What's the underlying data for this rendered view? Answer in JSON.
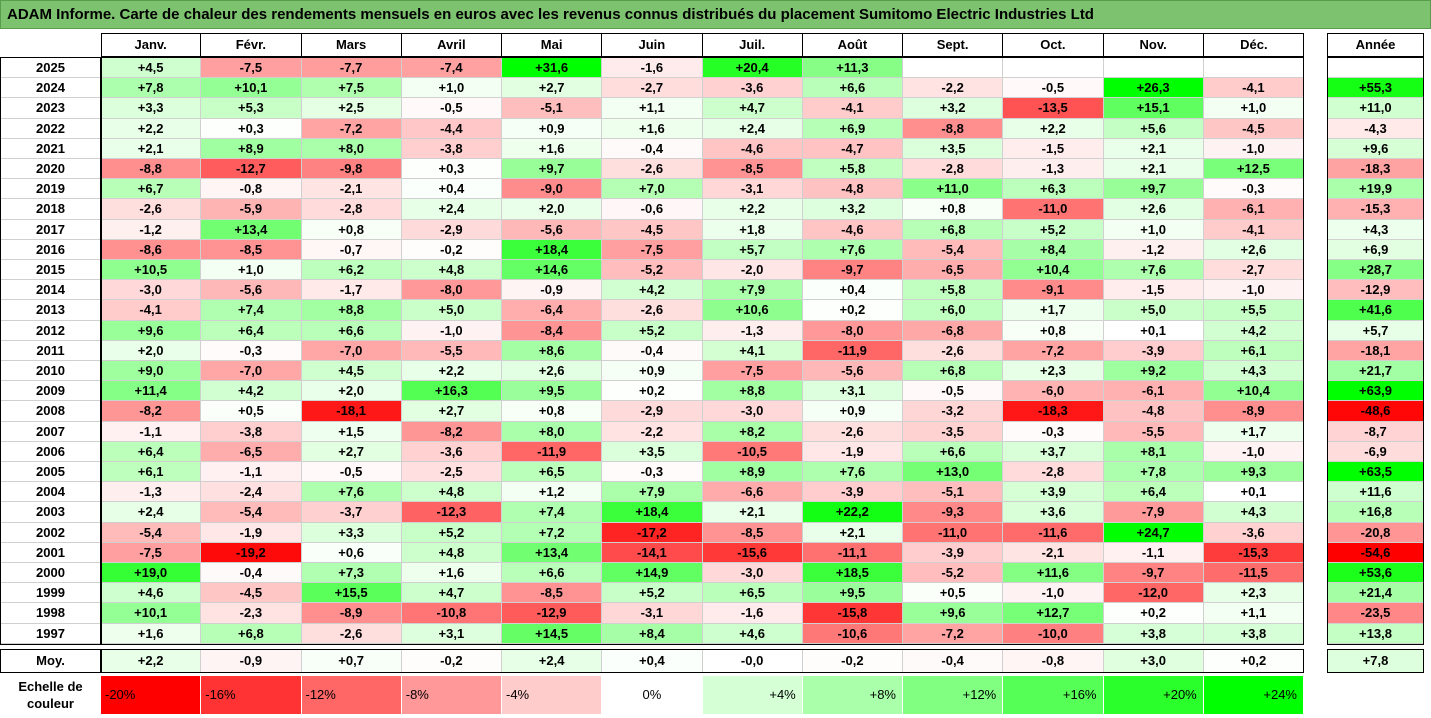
{
  "title": "ADAM Informe. Carte de chaleur des rendements mensuels en euros avec les revenus connus distribués du placement Sumitomo Electric Industries Ltd",
  "chart_data": {
    "type": "heatmap",
    "title": "ADAM Informe. Carte de chaleur des rendements mensuels en euros avec les revenus connus distribués du placement Sumitomo Electric Industries Ltd",
    "months": [
      "Janv.",
      "Févr.",
      "Mars",
      "Avril",
      "Mai",
      "Juin",
      "Juil.",
      "Août",
      "Sept.",
      "Oct.",
      "Nov.",
      "Déc."
    ],
    "year_header": "Année",
    "rows": [
      {
        "year": "2025",
        "values": [
          "+4,5",
          "-7,5",
          "-7,7",
          "-7,4",
          "+31,6",
          "-1,6",
          "+20,4",
          "+11,3",
          "",
          "",
          "",
          ""
        ],
        "annual": ""
      },
      {
        "year": "2024",
        "values": [
          "+7,8",
          "+10,1",
          "+7,5",
          "+1,0",
          "+2,7",
          "-2,7",
          "-3,6",
          "+6,6",
          "-2,2",
          "-0,5",
          "+26,3",
          "-4,1"
        ],
        "annual": "+55,3"
      },
      {
        "year": "2023",
        "values": [
          "+3,3",
          "+5,3",
          "+2,5",
          "-0,5",
          "-5,1",
          "+1,1",
          "+4,7",
          "-4,1",
          "+3,2",
          "-13,5",
          "+15,1",
          "+1,0"
        ],
        "annual": "+11,0"
      },
      {
        "year": "2022",
        "values": [
          "+2,2",
          "+0,3",
          "-7,2",
          "-4,4",
          "+0,9",
          "+1,6",
          "+2,4",
          "+6,9",
          "-8,8",
          "+2,2",
          "+5,6",
          "-4,5"
        ],
        "annual": "-4,3"
      },
      {
        "year": "2021",
        "values": [
          "+2,1",
          "+8,9",
          "+8,0",
          "-3,8",
          "+1,6",
          "-0,4",
          "-4,6",
          "-4,7",
          "+3,5",
          "-1,5",
          "+2,1",
          "-1,0"
        ],
        "annual": "+9,6"
      },
      {
        "year": "2020",
        "values": [
          "-8,8",
          "-12,7",
          "-9,8",
          "+0,3",
          "+9,7",
          "-2,6",
          "-8,5",
          "+5,8",
          "-2,8",
          "-1,3",
          "+2,1",
          "+12,5"
        ],
        "annual": "-18,3"
      },
      {
        "year": "2019",
        "values": [
          "+6,7",
          "-0,8",
          "-2,1",
          "+0,4",
          "-9,0",
          "+7,0",
          "-3,1",
          "-4,8",
          "+11,0",
          "+6,3",
          "+9,7",
          "-0,3"
        ],
        "annual": "+19,9"
      },
      {
        "year": "2018",
        "values": [
          "-2,6",
          "-5,9",
          "-2,8",
          "+2,4",
          "+2,0",
          "-0,6",
          "+2,2",
          "+3,2",
          "+0,8",
          "-11,0",
          "+2,6",
          "-6,1"
        ],
        "annual": "-15,3"
      },
      {
        "year": "2017",
        "values": [
          "-1,2",
          "+13,4",
          "+0,8",
          "-2,9",
          "-5,6",
          "-4,5",
          "+1,8",
          "-4,6",
          "+6,8",
          "+5,2",
          "+1,0",
          "-4,1"
        ],
        "annual": "+4,3"
      },
      {
        "year": "2016",
        "values": [
          "-8,6",
          "-8,5",
          "-0,7",
          "-0,2",
          "+18,4",
          "-7,5",
          "+5,7",
          "+7,6",
          "-5,4",
          "+8,4",
          "-1,2",
          "+2,6"
        ],
        "annual": "+6,9"
      },
      {
        "year": "2015",
        "values": [
          "+10,5",
          "+1,0",
          "+6,2",
          "+4,8",
          "+14,6",
          "-5,2",
          "-2,0",
          "-9,7",
          "-6,5",
          "+10,4",
          "+7,6",
          "-2,7"
        ],
        "annual": "+28,7"
      },
      {
        "year": "2014",
        "values": [
          "-3,0",
          "-5,6",
          "-1,7",
          "-8,0",
          "-0,9",
          "+4,2",
          "+7,9",
          "+0,4",
          "+5,8",
          "-9,1",
          "-1,5",
          "-1,0"
        ],
        "annual": "-12,9"
      },
      {
        "year": "2013",
        "values": [
          "-4,1",
          "+7,4",
          "+8,8",
          "+5,0",
          "-6,4",
          "-2,6",
          "+10,6",
          "+0,2",
          "+6,0",
          "+1,7",
          "+5,0",
          "+5,5"
        ],
        "annual": "+41,6"
      },
      {
        "year": "2012",
        "values": [
          "+9,6",
          "+6,4",
          "+6,6",
          "-1,0",
          "-8,4",
          "+5,2",
          "-1,3",
          "-8,0",
          "-6,8",
          "+0,8",
          "+0,1",
          "+4,2"
        ],
        "annual": "+5,7"
      },
      {
        "year": "2011",
        "values": [
          "+2,0",
          "-0,3",
          "-7,0",
          "-5,5",
          "+8,6",
          "-0,4",
          "+4,1",
          "-11,9",
          "-2,6",
          "-7,2",
          "-3,9",
          "+6,1"
        ],
        "annual": "-18,1"
      },
      {
        "year": "2010",
        "values": [
          "+9,0",
          "-7,0",
          "+4,5",
          "+2,2",
          "+2,6",
          "+0,9",
          "-7,5",
          "-5,6",
          "+6,8",
          "+2,3",
          "+9,2",
          "+4,3"
        ],
        "annual": "+21,7"
      },
      {
        "year": "2009",
        "values": [
          "+11,4",
          "+4,2",
          "+2,0",
          "+16,3",
          "+9,5",
          "+0,2",
          "+8,8",
          "+3,1",
          "-0,5",
          "-6,0",
          "-6,1",
          "+10,4"
        ],
        "annual": "+63,9"
      },
      {
        "year": "2008",
        "values": [
          "-8,2",
          "+0,5",
          "-18,1",
          "+2,7",
          "+0,8",
          "-2,9",
          "-3,0",
          "+0,9",
          "-3,2",
          "-18,3",
          "-4,8",
          "-8,9"
        ],
        "annual": "-48,6"
      },
      {
        "year": "2007",
        "values": [
          "-1,1",
          "-3,8",
          "+1,5",
          "-8,2",
          "+8,0",
          "-2,2",
          "+8,2",
          "-2,6",
          "-3,5",
          "-0,3",
          "-5,5",
          "+1,7"
        ],
        "annual": "-8,7"
      },
      {
        "year": "2006",
        "values": [
          "+6,4",
          "-6,5",
          "+2,7",
          "-3,6",
          "-11,9",
          "+3,5",
          "-10,5",
          "-1,9",
          "+6,6",
          "+3,7",
          "+8,1",
          "-1,0"
        ],
        "annual": "-6,9"
      },
      {
        "year": "2005",
        "values": [
          "+6,1",
          "-1,1",
          "-0,5",
          "-2,5",
          "+6,5",
          "-0,3",
          "+8,9",
          "+7,6",
          "+13,0",
          "-2,8",
          "+7,8",
          "+9,3"
        ],
        "annual": "+63,5"
      },
      {
        "year": "2004",
        "values": [
          "-1,3",
          "-2,4",
          "+7,6",
          "+4,8",
          "+1,2",
          "+7,9",
          "-6,6",
          "-3,9",
          "-5,1",
          "+3,9",
          "+6,4",
          "+0,1"
        ],
        "annual": "+11,6"
      },
      {
        "year": "2003",
        "values": [
          "+2,4",
          "-5,4",
          "-3,7",
          "-12,3",
          "+7,4",
          "+18,4",
          "+2,1",
          "+22,2",
          "-9,3",
          "+3,6",
          "-7,9",
          "+4,3"
        ],
        "annual": "+16,8"
      },
      {
        "year": "2002",
        "values": [
          "-5,4",
          "-1,9",
          "+3,3",
          "+5,2",
          "+7,2",
          "-17,2",
          "-8,5",
          "+2,1",
          "-11,0",
          "-11,6",
          "+24,7",
          "-3,6"
        ],
        "annual": "-20,8"
      },
      {
        "year": "2001",
        "values": [
          "-7,5",
          "-19,2",
          "+0,6",
          "+4,8",
          "+13,4",
          "-14,1",
          "-15,6",
          "-11,1",
          "-3,9",
          "-2,1",
          "-1,1",
          "-15,3"
        ],
        "annual": "-54,6"
      },
      {
        "year": "2000",
        "values": [
          "+19,0",
          "-0,4",
          "+7,3",
          "+1,6",
          "+6,6",
          "+14,9",
          "-3,0",
          "+18,5",
          "-5,2",
          "+11,6",
          "-9,7",
          "-11,5"
        ],
        "annual": "+53,6"
      },
      {
        "year": "1999",
        "values": [
          "+4,6",
          "-4,5",
          "+15,5",
          "+4,7",
          "-8,5",
          "+5,2",
          "+6,5",
          "+9,5",
          "+0,5",
          "-1,0",
          "-12,0",
          "+2,3"
        ],
        "annual": "+21,4"
      },
      {
        "year": "1998",
        "values": [
          "+10,1",
          "-2,3",
          "-8,9",
          "-10,8",
          "-12,9",
          "-3,1",
          "-1,6",
          "-15,8",
          "+9,6",
          "+12,7",
          "+0,2",
          "+1,1"
        ],
        "annual": "-23,5"
      },
      {
        "year": "1997",
        "values": [
          "+1,6",
          "+6,8",
          "-2,6",
          "+3,1",
          "+14,5",
          "+8,4",
          "+4,6",
          "-10,6",
          "-7,2",
          "-10,0",
          "+3,8",
          "+3,8"
        ],
        "annual": "+13,8"
      }
    ],
    "average": {
      "label": "Moy.",
      "values": [
        "+2,2",
        "-0,9",
        "+0,7",
        "-0,2",
        "+2,4",
        "+0,4",
        "-0,0",
        "-0,2",
        "-0,4",
        "-0,8",
        "+3,0",
        "+0,2"
      ],
      "annual": "+7,8"
    },
    "color_scale": {
      "label_line1": "Echelle de",
      "label_line2": "couleur",
      "stops": [
        "-20%",
        "-16%",
        "-12%",
        "-8%",
        "-4%",
        "0%",
        "+4%",
        "+8%",
        "+12%",
        "+16%",
        "+20%",
        "+24%"
      ],
      "stop_values": [
        -20,
        -16,
        -12,
        -8,
        -4,
        0,
        4,
        8,
        12,
        16,
        20,
        24
      ],
      "negative_color": "#ff0000",
      "neutral_color": "#ffffff",
      "positive_color": "#00ff00"
    }
  }
}
